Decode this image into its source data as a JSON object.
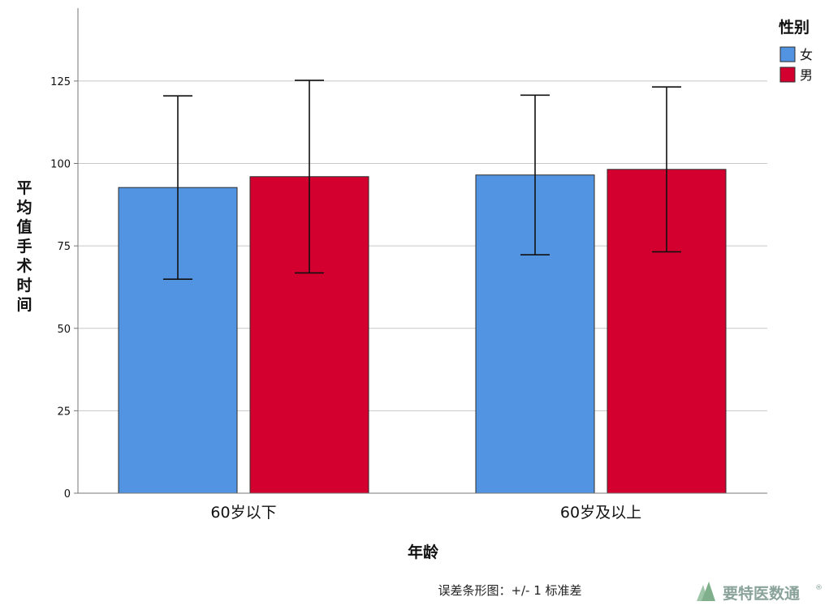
{
  "chart_data": {
    "type": "bar",
    "categories": [
      "60岁以下",
      "60岁及以上"
    ],
    "series": [
      {
        "name": "女",
        "color": "#5294E2",
        "values": [
          92.7,
          96.5
        ],
        "error": [
          27.8,
          24.2
        ]
      },
      {
        "name": "男",
        "color": "#D3002F",
        "values": [
          96.0,
          98.2
        ],
        "error": [
          29.2,
          25.0
        ]
      }
    ],
    "xlabel": "年龄",
    "ylabel": "平均值手术时间",
    "ylim": [
      0,
      150
    ],
    "yticks": [
      0,
      25,
      50,
      75,
      100,
      125
    ],
    "grid": true,
    "legend": {
      "title": "性别",
      "position": "top-right"
    },
    "footnote": "误差条形图：+/- 1 标准差"
  },
  "watermark": {
    "text": "要特医数通",
    "mark": "®"
  }
}
